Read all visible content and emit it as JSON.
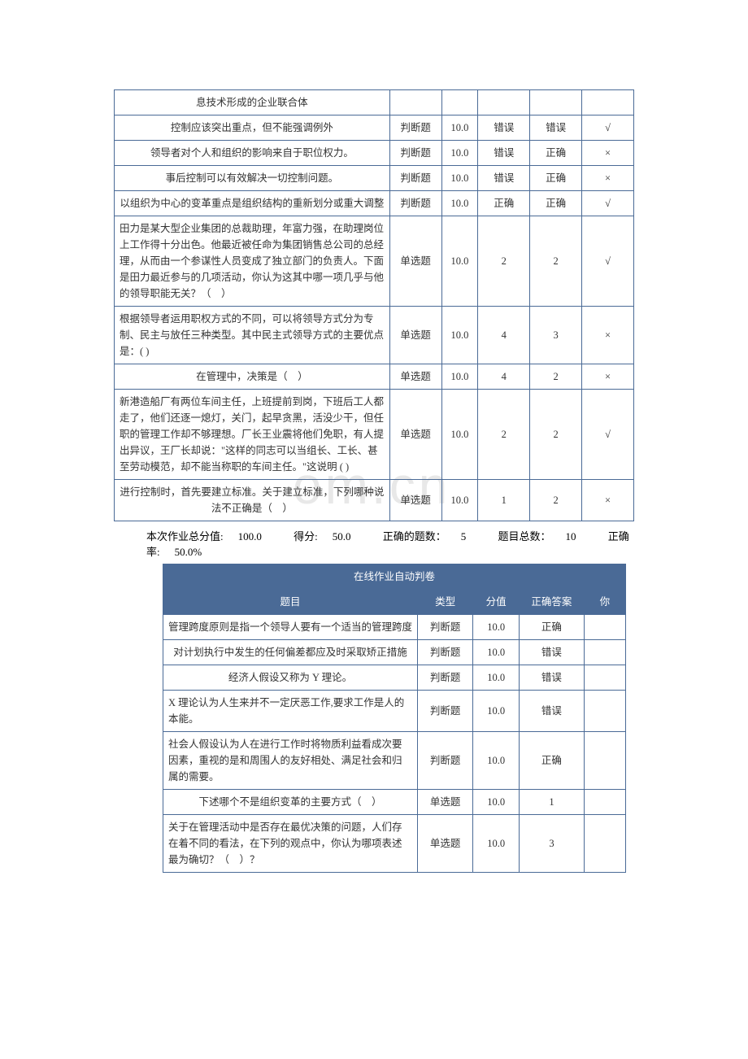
{
  "watermark": "om.cn",
  "table1": {
    "rows": [
      {
        "topic": "息技术形成的企业联合体",
        "type": "",
        "score": "",
        "correct": "",
        "your": "",
        "mark": "",
        "align": "center"
      },
      {
        "topic": "控制应该突出重点，但不能强调例外",
        "type": "判断题",
        "score": "10.0",
        "correct": "错误",
        "your": "错误",
        "mark": "√",
        "align": "center"
      },
      {
        "topic": "领导者对个人和组织的影响来自于职位权力。",
        "type": "判断题",
        "score": "10.0",
        "correct": "错误",
        "your": "正确",
        "mark": "×",
        "align": "center"
      },
      {
        "topic": "事后控制可以有效解决一切控制问题。",
        "type": "判断题",
        "score": "10.0",
        "correct": "错误",
        "your": "正确",
        "mark": "×",
        "align": "center"
      },
      {
        "topic": "以组织为中心的变革重点是组织结构的重新划分或重大调整",
        "type": "判断题",
        "score": "10.0",
        "correct": "正确",
        "your": "正确",
        "mark": "√",
        "align": "center"
      },
      {
        "topic": "田力是某大型企业集团的总裁助理，年富力强，在助理岗位上工作得十分出色。他最近被任命为集团销售总公司的总经理，从而由一个参谋性人员变成了独立部门的负责人。下面是田力最近参与的几项活动，你认为这其中哪一项几乎与他的领导职能无关？（　）",
        "type": "单选题",
        "score": "10.0",
        "correct": "2",
        "your": "2",
        "mark": "√",
        "align": "left"
      },
      {
        "topic": "根据领导者运用职权方式的不同，可以将领导方式分为专制、民主与放任三种类型。其中民主式领导方式的主要优点是：( )",
        "type": "单选题",
        "score": "10.0",
        "correct": "4",
        "your": "3",
        "mark": "×",
        "align": "left"
      },
      {
        "topic": "在管理中，决策是（　）",
        "type": "单选题",
        "score": "10.0",
        "correct": "4",
        "your": "2",
        "mark": "×",
        "align": "center"
      },
      {
        "topic": "新港造船厂有两位车间主任，上班提前到岗，下班后工人都走了，他们还逐一熄灯，关门，起早贪黑，活没少干，但任职的管理工作却不够理想。厂长王业震将他们免职，有人提出异议，王厂长却说：\"这样的同志可以当组长、工长、甚至劳动模范，却不能当称职的车间主任。\"这说明 (  )",
        "type": "单选题",
        "score": "10.0",
        "correct": "2",
        "your": "2",
        "mark": "√",
        "align": "left"
      },
      {
        "topic": "进行控制时，首先要建立标准。关于建立标准，下列哪种说法不正确是（　）",
        "type": "单选题",
        "score": "10.0",
        "correct": "1",
        "your": "2",
        "mark": "×",
        "align": "center"
      }
    ]
  },
  "summary": {
    "total_label": "本次作业总分值:",
    "total_value": "100.0",
    "score_label": "得分:",
    "score_value": "50.0",
    "correct_count_label": "正确的题数：",
    "correct_count_value": "5",
    "total_count_label": "题目总数：",
    "total_count_value": "10",
    "rate_label": "正确率:",
    "rate_value": "50.0%"
  },
  "table2": {
    "title": "在线作业自动判卷",
    "headers": {
      "topic": "题目",
      "type": "类型",
      "score": "分值",
      "correct": "正确答案",
      "your": "你"
    },
    "rows": [
      {
        "topic": "管理跨度原则是指一个领导人要有一个适当的管理跨度",
        "type": "判断题",
        "score": "10.0",
        "correct": "正确",
        "your": "",
        "align": "center"
      },
      {
        "topic": "对计划执行中发生的任何偏差都应及时采取矫正措施",
        "type": "判断题",
        "score": "10.0",
        "correct": "错误",
        "your": "",
        "align": "center"
      },
      {
        "topic": "经济人假设又称为 Y 理论。",
        "type": "判断题",
        "score": "10.0",
        "correct": "错误",
        "your": "",
        "align": "center"
      },
      {
        "topic": "X 理论认为人生来并不一定厌恶工作,要求工作是人的本能。",
        "type": "判断题",
        "score": "10.0",
        "correct": "错误",
        "your": "",
        "align": "left"
      },
      {
        "topic": "社会人假设认为人在进行工作时将物质利益看成次要因素，重视的是和周围人的友好相处、满足社会和归属的需要。",
        "type": "判断题",
        "score": "10.0",
        "correct": "正确",
        "your": "",
        "align": "left"
      },
      {
        "topic": "下述哪个不是组织变革的主要方式（　）",
        "type": "单选题",
        "score": "10.0",
        "correct": "1",
        "your": "",
        "align": "center"
      },
      {
        "topic": "关于在管理活动中是否存在最优决策的问题，人们存在着不同的看法，在下列的观点中，你认为哪项表述最为确切？（　）？",
        "type": "单选题",
        "score": "10.0",
        "correct": "3",
        "your": "",
        "align": "left"
      }
    ]
  }
}
